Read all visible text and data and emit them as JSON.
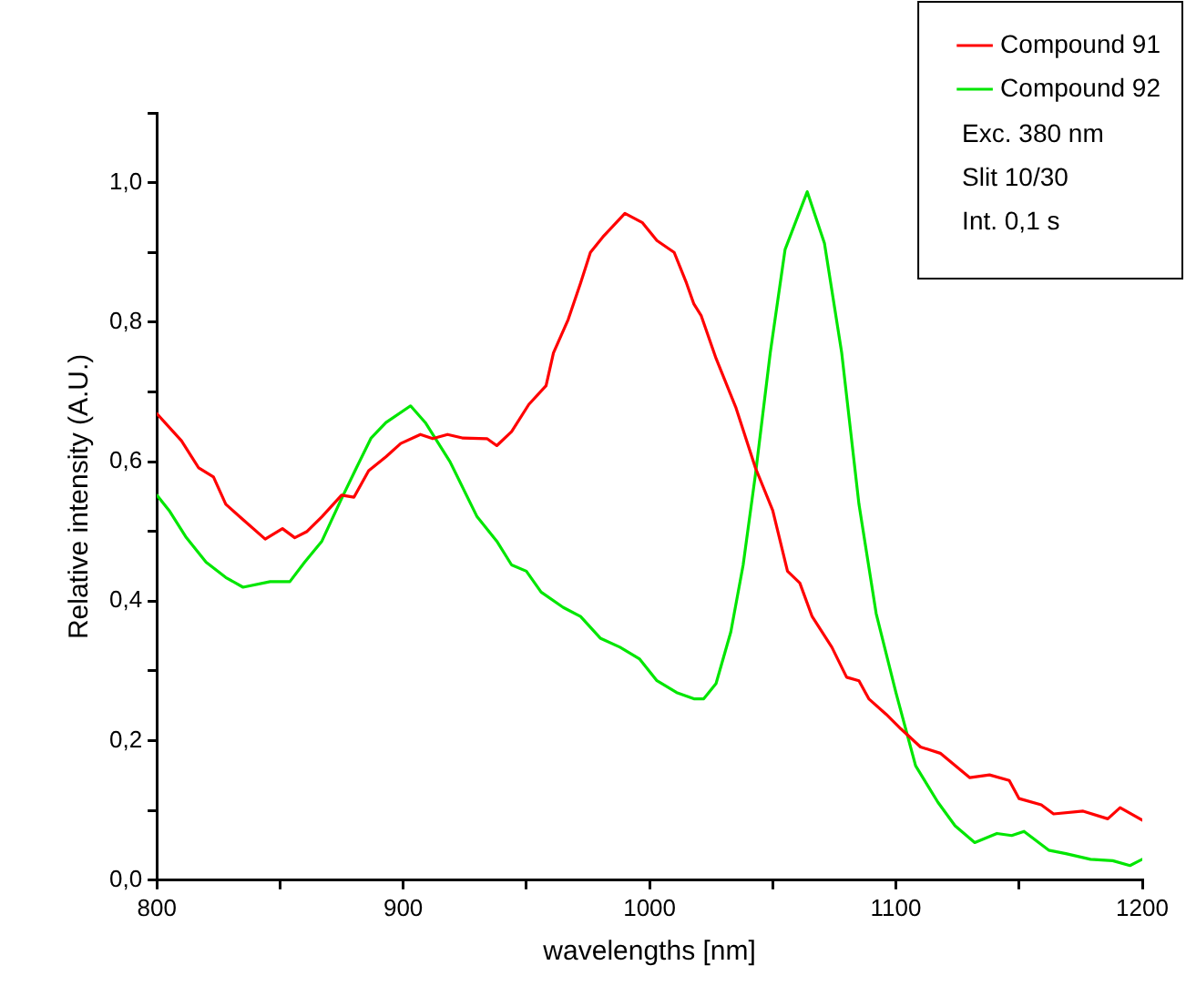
{
  "chart_data": {
    "type": "line",
    "xlabel": "wavelengths [nm]",
    "ylabel": "Relative intensity (A.U.)",
    "xlim": [
      800,
      1200
    ],
    "ylim": [
      0,
      1.1
    ],
    "xticks": [
      800,
      {
        "value": 850,
        "label": null
      },
      900,
      {
        "value": 950,
        "label": null
      },
      1000,
      {
        "value": 1050,
        "label": null
      },
      1100,
      {
        "value": 1150,
        "label": null
      },
      1200
    ],
    "yticks": [
      {
        "value": 0,
        "label": "0,0"
      },
      {
        "value": 0.1,
        "label": null
      },
      {
        "value": 0.2,
        "label": "0,2"
      },
      {
        "value": 0.3,
        "label": null
      },
      {
        "value": 0.4,
        "label": "0,4"
      },
      {
        "value": 0.5,
        "label": null
      },
      {
        "value": 0.6,
        "label": "0,6"
      },
      {
        "value": 0.7,
        "label": null
      },
      {
        "value": 0.8,
        "label": "0,8"
      },
      {
        "value": 0.9,
        "label": null
      },
      {
        "value": 1,
        "label": "1,0"
      },
      {
        "value": 1.1,
        "label": null
      }
    ],
    "grid": false,
    "legend": "top right",
    "marker": "none",
    "line_style": "solid",
    "annotations": [
      "Exc. 380 nm",
      "Slit 10/30",
      "Int. 0,1 s"
    ],
    "series": [
      {
        "name": "Compound 91",
        "color": "#ff0000",
        "x": [
          800,
          810,
          817,
          823,
          828,
          835,
          844,
          851,
          856,
          861,
          867,
          875,
          880,
          886,
          893,
          899,
          907,
          912,
          918,
          924,
          934,
          938,
          944,
          951,
          958,
          961,
          967,
          972,
          976,
          981,
          990,
          997,
          1003,
          1010,
          1015,
          1018,
          1021,
          1027,
          1035,
          1043,
          1050,
          1056,
          1061,
          1066,
          1074,
          1080,
          1085,
          1089,
          1096,
          1102,
          1110,
          1118,
          1130,
          1138,
          1146,
          1150,
          1159,
          1164,
          1176,
          1186,
          1191,
          1200
        ],
        "values": [
          0.669,
          0.63,
          0.591,
          0.578,
          0.539,
          0.517,
          0.489,
          0.504,
          0.491,
          0.5,
          0.521,
          0.552,
          0.549,
          0.587,
          0.607,
          0.626,
          0.639,
          0.633,
          0.639,
          0.634,
          0.633,
          0.623,
          0.643,
          0.682,
          0.709,
          0.756,
          0.804,
          0.856,
          0.9,
          0.922,
          0.956,
          0.943,
          0.917,
          0.9,
          0.856,
          0.826,
          0.809,
          0.748,
          0.678,
          0.591,
          0.53,
          0.443,
          0.426,
          0.378,
          0.334,
          0.291,
          0.286,
          0.26,
          0.238,
          0.217,
          0.191,
          0.182,
          0.147,
          0.151,
          0.143,
          0.117,
          0.108,
          0.095,
          0.099,
          0.088,
          0.104,
          0.086
        ]
      },
      {
        "name": "Compound 92",
        "color": "#00e600",
        "x": [
          800,
          805,
          812,
          820,
          828,
          835,
          846,
          854,
          860,
          867,
          875,
          881,
          887,
          893,
          903,
          909,
          919,
          930,
          938,
          944,
          950,
          956,
          965,
          972,
          980,
          988,
          996,
          1003,
          1011,
          1018,
          1022,
          1027,
          1033,
          1038,
          1043,
          1049,
          1055,
          1064,
          1071,
          1078,
          1085,
          1092,
          1100,
          1108,
          1117,
          1124,
          1132,
          1141,
          1147,
          1152,
          1162,
          1169,
          1179,
          1188,
          1195,
          1200
        ],
        "values": [
          0.552,
          0.53,
          0.491,
          0.456,
          0.434,
          0.42,
          0.428,
          0.428,
          0.456,
          0.486,
          0.547,
          0.591,
          0.634,
          0.656,
          0.68,
          0.656,
          0.6,
          0.521,
          0.486,
          0.452,
          0.443,
          0.413,
          0.391,
          0.378,
          0.347,
          0.334,
          0.317,
          0.286,
          0.269,
          0.26,
          0.26,
          0.282,
          0.356,
          0.452,
          0.582,
          0.756,
          0.904,
          0.987,
          0.913,
          0.756,
          0.539,
          0.382,
          0.269,
          0.164,
          0.112,
          0.078,
          0.054,
          0.067,
          0.064,
          0.07,
          0.043,
          0.038,
          0.03,
          0.028,
          0.021,
          0.03
        ]
      }
    ]
  }
}
